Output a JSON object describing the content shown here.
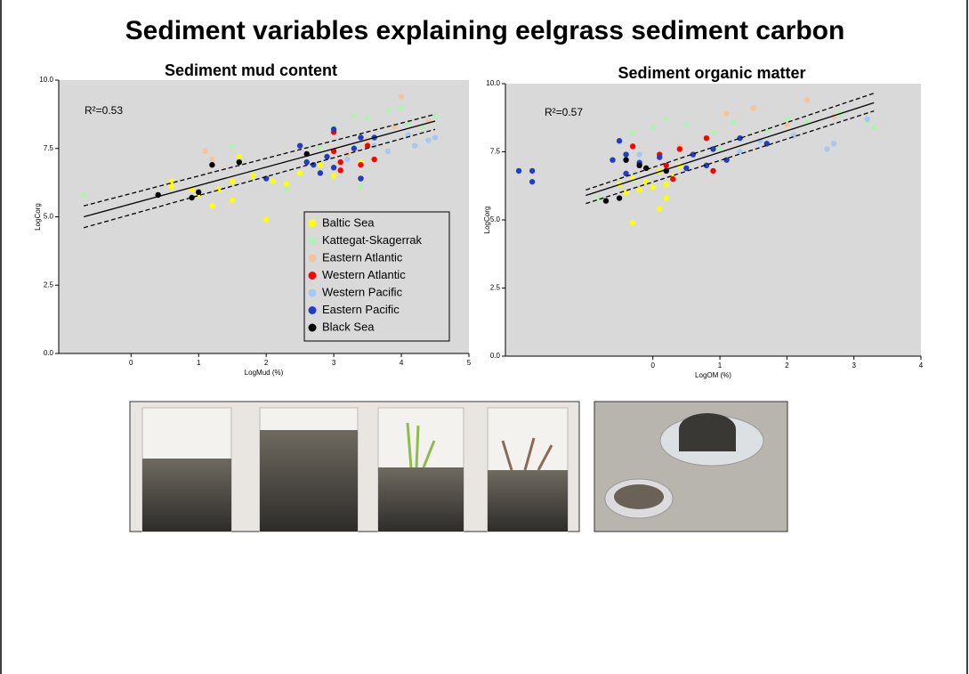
{
  "title": "Sediment variables explaining eelgrass sediment carbon",
  "chart_data": [
    {
      "type": "scatter",
      "title": "Sediment mud content",
      "x_label": "LogMud (%)",
      "y_label": "LogCorg",
      "annotation": "R²=0.53",
      "legend": "lower right",
      "background": "#d9d9d9",
      "xlim": [
        -1.07,
        5.0
      ],
      "ylim": [
        0,
        10
      ],
      "xticks": [
        0,
        1,
        2,
        3,
        4,
        5
      ],
      "yticks": [
        {
          "value": 0,
          "label": "0.0"
        },
        {
          "value": 2.5,
          "label": "2.5"
        },
        {
          "value": 5,
          "label": "5.0"
        },
        {
          "value": 7.5,
          "label": "7.5"
        },
        {
          "value": 10,
          "label": "10.0"
        }
      ],
      "series": [
        {
          "name": "Baltic Sea",
          "color": "#ffff00",
          "x": [
            0.6,
            0.9,
            1.0,
            1.2,
            1.5,
            1.5,
            1.6,
            1.8,
            2.0,
            2.1,
            2.3,
            2.5,
            2.8,
            3.0,
            3.4,
            0.6,
            1.3
          ],
          "values": [
            6.1,
            6.0,
            5.8,
            5.4,
            5.6,
            6.3,
            7.2,
            6.5,
            4.9,
            6.3,
            6.2,
            6.6,
            6.9,
            6.5,
            7.0,
            6.3,
            6.0
          ]
        },
        {
          "name": "Kattegat-Skagerrak",
          "color": "#b3f0b3",
          "x": [
            -0.7,
            1.5,
            2.3,
            2.8,
            3.0,
            3.3,
            3.4,
            3.5,
            3.8,
            4.0,
            4.1,
            4.3,
            4.5,
            3.2
          ],
          "values": [
            5.8,
            7.6,
            6.0,
            7.5,
            8.3,
            8.7,
            6.1,
            8.6,
            8.9,
            9.0,
            8.4,
            8.3,
            8.7,
            7.3
          ]
        },
        {
          "name": "Eastern Atlantic",
          "color": "#f5c49c",
          "x": [
            1.1,
            1.2,
            3.2,
            3.5,
            3.9,
            4.0,
            4.4
          ],
          "values": [
            7.4,
            7.1,
            7.3,
            7.8,
            8.3,
            9.4,
            8.5
          ]
        },
        {
          "name": "Western Atlantic",
          "color": "#ff0000",
          "x": [
            3.0,
            3.0,
            3.1,
            3.1,
            3.4,
            3.5,
            3.6,
            3.4
          ],
          "values": [
            8.1,
            7.4,
            7.0,
            6.7,
            6.9,
            7.6,
            7.1,
            6.4
          ]
        },
        {
          "name": "Western Pacific",
          "color": "#a9c8ee",
          "x": [
            3.2,
            3.6,
            3.8,
            4.2,
            4.4,
            4.5,
            4.1
          ],
          "values": [
            7.1,
            7.6,
            7.4,
            7.6,
            7.8,
            7.9,
            8.0
          ]
        },
        {
          "name": "Eastern Pacific",
          "color": "#1f3fbf",
          "x": [
            2.0,
            2.5,
            2.6,
            2.7,
            2.8,
            3.0,
            3.0,
            3.3,
            3.4,
            3.6,
            3.4,
            2.9
          ],
          "values": [
            6.4,
            7.6,
            7.0,
            6.9,
            6.6,
            8.2,
            6.8,
            7.5,
            7.9,
            7.9,
            6.4,
            7.2
          ]
        },
        {
          "name": "Black Sea",
          "color": "#000000",
          "x": [
            0.4,
            0.9,
            1.0,
            1.2,
            1.6,
            2.6
          ],
          "values": [
            5.8,
            5.7,
            5.9,
            6.9,
            7.0,
            7.3
          ]
        }
      ],
      "fit_lines": [
        {
          "dashed": false,
          "x": [
            -0.7,
            4.5
          ],
          "values": [
            5.0,
            8.5
          ]
        },
        {
          "dashed": true,
          "x": [
            -0.7,
            4.5
          ],
          "values": [
            5.4,
            8.75
          ]
        },
        {
          "dashed": true,
          "x": [
            -0.7,
            4.5
          ],
          "values": [
            4.6,
            8.2
          ]
        }
      ]
    },
    {
      "type": "scatter",
      "title": "Sediment organic matter",
      "x_label": "LogOM (%)",
      "y_label": "LogCorg",
      "annotation": "R²=0.57",
      "background": "#d9d9d9",
      "xlim": [
        -2.2,
        4.0
      ],
      "ylim": [
        0,
        10
      ],
      "xticks": [
        0,
        1,
        2,
        3,
        4
      ],
      "yticks": [
        {
          "value": 0,
          "label": "0.0"
        },
        {
          "value": 2.5,
          "label": "2.5"
        },
        {
          "value": 5,
          "label": "5.0"
        },
        {
          "value": 7.5,
          "label": "7.5"
        },
        {
          "value": 10,
          "label": "10.0"
        }
      ],
      "series": [
        {
          "name": "Baltic Sea",
          "color": "#ffff00",
          "x": [
            -0.5,
            -0.4,
            -0.3,
            -0.2,
            -0.1,
            0,
            0.1,
            -0.3,
            0.1,
            0.2,
            0.3,
            0.4,
            -0.1,
            0.2
          ],
          "values": [
            6.3,
            6.0,
            6.5,
            6.1,
            6.4,
            6.2,
            6.8,
            4.9,
            5.4,
            5.8,
            6.6,
            7.0,
            6.9,
            6.3
          ]
        },
        {
          "name": "Kattegat-Skagerrak",
          "color": "#b3f0b3",
          "x": [
            -0.8,
            -0.3,
            0,
            0.2,
            0.5,
            0.9,
            1.2,
            1.7,
            2.0,
            2.3,
            2.8,
            3.2,
            3.3,
            1.0
          ],
          "values": [
            5.8,
            8.2,
            8.4,
            8.7,
            8.5,
            8.2,
            8.6,
            8.3,
            8.7,
            8.6,
            8.9,
            8.6,
            8.4,
            7.6
          ]
        },
        {
          "name": "Eastern Atlantic",
          "color": "#f5c49c",
          "x": [
            0.4,
            1.1,
            1.5,
            2.3,
            2.7,
            2.0
          ],
          "values": [
            7.7,
            8.9,
            9.1,
            9.4,
            8.8,
            8.5
          ]
        },
        {
          "name": "Western Atlantic",
          "color": "#ff0000",
          "x": [
            -0.3,
            0.2,
            0.3,
            0.4,
            0.8,
            0.9,
            0.1
          ],
          "values": [
            7.7,
            7.0,
            6.5,
            7.6,
            8.0,
            6.8,
            7.4
          ]
        },
        {
          "name": "Western Pacific",
          "color": "#a9c8ee",
          "x": [
            -0.2,
            1.3,
            1.6,
            2.1,
            2.6,
            2.7,
            3.2
          ],
          "values": [
            7.4,
            7.5,
            7.9,
            8.1,
            7.6,
            7.8,
            8.7
          ]
        },
        {
          "name": "Eastern Pacific",
          "color": "#1f3fbf",
          "x": [
            -2.0,
            -1.8,
            -1.8,
            -0.6,
            -0.5,
            -0.4,
            -0.2,
            0.1,
            0.5,
            0.6,
            0.9,
            1.1,
            1.3,
            1.7,
            0.8,
            -0.4
          ],
          "values": [
            6.8,
            6.8,
            6.4,
            7.2,
            7.9,
            7.4,
            7.1,
            7.3,
            6.9,
            7.4,
            7.6,
            7.2,
            8.0,
            7.8,
            7.0,
            6.7
          ]
        },
        {
          "name": "Black Sea",
          "color": "#000000",
          "x": [
            -0.7,
            -0.5,
            -0.2,
            -0.1,
            0.2,
            -0.4
          ],
          "values": [
            5.7,
            5.8,
            7.0,
            6.9,
            6.8,
            7.2
          ]
        }
      ],
      "fit_lines": [
        {
          "dashed": false,
          "x": [
            -1.0,
            3.3
          ],
          "values": [
            5.9,
            9.3
          ]
        },
        {
          "dashed": true,
          "x": [
            -1.0,
            3.3
          ],
          "values": [
            6.1,
            9.65
          ]
        },
        {
          "dashed": true,
          "x": [
            -1.0,
            3.3
          ],
          "values": [
            5.6,
            9.0
          ]
        }
      ]
    }
  ]
}
